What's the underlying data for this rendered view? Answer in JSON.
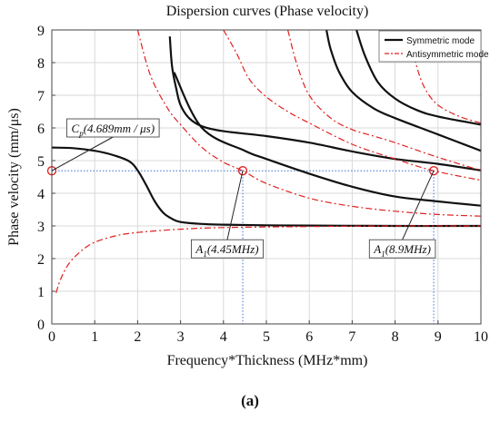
{
  "chart_data": {
    "type": "line",
    "title": "Dispersion curves (Phase velocity)",
    "xlabel": "Frequency*Thickness (MHz*mm)",
    "ylabel": "Phase velocity (mm/μs)",
    "xlim": [
      0,
      10
    ],
    "ylim": [
      0,
      9
    ],
    "x_ticks": [
      "0",
      "1",
      "2",
      "3",
      "4",
      "5",
      "6",
      "7",
      "8",
      "9",
      "10"
    ],
    "y_ticks": [
      "0",
      "1",
      "2",
      "3",
      "4",
      "5",
      "6",
      "7",
      "8",
      "9"
    ],
    "grid": true,
    "legend_position": "top-right",
    "series": [
      {
        "name": "Symmetric mode",
        "color": "#111111",
        "style": "solid",
        "curves": [
          {
            "x": [
              0,
              0.5,
              1.0,
              1.4,
              1.8,
              2.0,
              2.2,
              2.4,
              2.6,
              2.8,
              3.0,
              3.5,
              4.0,
              5.0,
              6.0,
              8.0,
              10.0
            ],
            "y": [
              5.4,
              5.38,
              5.3,
              5.18,
              4.98,
              4.7,
              4.25,
              3.75,
              3.4,
              3.22,
              3.12,
              3.06,
              3.04,
              3.02,
              3.01,
              3.0,
              3.0
            ]
          },
          {
            "x": [
              2.75,
              2.8,
              2.9,
              3.0,
              3.2,
              3.5,
              4.0,
              5.0,
              6.0,
              7.0,
              8.0,
              9.0,
              10.0
            ],
            "y": [
              8.8,
              7.9,
              7.2,
              6.7,
              6.3,
              6.05,
              5.9,
              5.75,
              5.55,
              5.28,
              5.05,
              4.9,
              4.7
            ]
          },
          {
            "x": [
              2.85,
              3.5,
              4.5,
              5.0,
              6.0,
              7.0,
              8.0,
              9.0,
              10.0
            ],
            "y": [
              7.7,
              6.0,
              5.3,
              5.05,
              4.6,
              4.2,
              3.9,
              3.75,
              3.62
            ]
          },
          {
            "x": [
              6.4,
              6.5,
              6.7,
              7.0,
              7.5,
              8.0,
              9.0,
              10.0
            ],
            "y": [
              9.0,
              8.4,
              7.7,
              7.1,
              6.6,
              6.3,
              5.8,
              5.3
            ]
          },
          {
            "x": [
              7.1,
              7.3,
              7.6,
              8.0,
              8.5,
              9.0,
              10.0
            ],
            "y": [
              9.0,
              8.2,
              7.4,
              6.9,
              6.55,
              6.35,
              6.1
            ]
          }
        ]
      },
      {
        "name": "Antisymmetric mode",
        "color": "#e02020",
        "style": "dash-dot",
        "curves": [
          {
            "x": [
              0.1,
              0.2,
              0.4,
              0.7,
              1.0,
              1.5,
              2.0,
              3.0,
              4.0,
              6.0,
              8.0,
              10.0
            ],
            "y": [
              0.95,
              1.35,
              1.85,
              2.25,
              2.5,
              2.7,
              2.8,
              2.9,
              2.95,
              2.98,
              3.0,
              3.0
            ]
          },
          {
            "x": [
              2.0,
              2.3,
              2.7,
              3.0,
              3.5,
              4.0,
              4.45,
              5.0,
              6.0,
              7.0,
              8.0,
              9.0,
              10.0
            ],
            "y": [
              9.0,
              7.6,
              6.6,
              6.1,
              5.4,
              4.95,
              4.69,
              4.3,
              3.85,
              3.6,
              3.45,
              3.35,
              3.3
            ]
          },
          {
            "x": [
              4.0,
              4.3,
              4.6,
              5.0,
              5.5,
              6.0,
              7.0,
              8.0,
              8.9,
              10.0
            ],
            "y": [
              9.0,
              8.3,
              7.5,
              6.95,
              6.5,
              6.15,
              5.5,
              5.05,
              4.69,
              4.4
            ]
          },
          {
            "x": [
              5.5,
              5.7,
              6.0,
              6.5,
              7.0,
              7.5,
              8.0,
              9.0,
              10.0
            ],
            "y": [
              9.0,
              8.0,
              7.0,
              6.3,
              5.95,
              5.75,
              5.55,
              5.1,
              4.7
            ]
          },
          {
            "x": [
              8.3,
              8.5,
              8.7,
              9.0,
              9.5,
              10.0
            ],
            "y": [
              9.0,
              7.9,
              7.2,
              6.7,
              6.35,
              6.15
            ]
          }
        ]
      }
    ],
    "reference_lines": {
      "y": 4.689,
      "x": [
        4.45,
        8.9
      ]
    },
    "markers": [
      {
        "x": 0,
        "y": 4.689
      },
      {
        "x": 4.45,
        "y": 4.689
      },
      {
        "x": 8.9,
        "y": 4.689
      }
    ],
    "annotations": [
      {
        "base": "C",
        "sub": "p",
        "text": "(4.689mm / μs)",
        "x": 0,
        "y": 4.689,
        "box_x": 0.35,
        "box_y": 6.0
      },
      {
        "base": "A",
        "sub": "1",
        "text": "(4.45MHz)",
        "x": 4.45,
        "y": 4.689,
        "box_x": 3.25,
        "box_y": 2.3
      },
      {
        "base": "A",
        "sub": "1",
        "text": "(8.9MHz)",
        "x": 8.9,
        "y": 4.689,
        "box_x": 7.4,
        "box_y": 2.3
      }
    ],
    "caption": "(a)"
  }
}
